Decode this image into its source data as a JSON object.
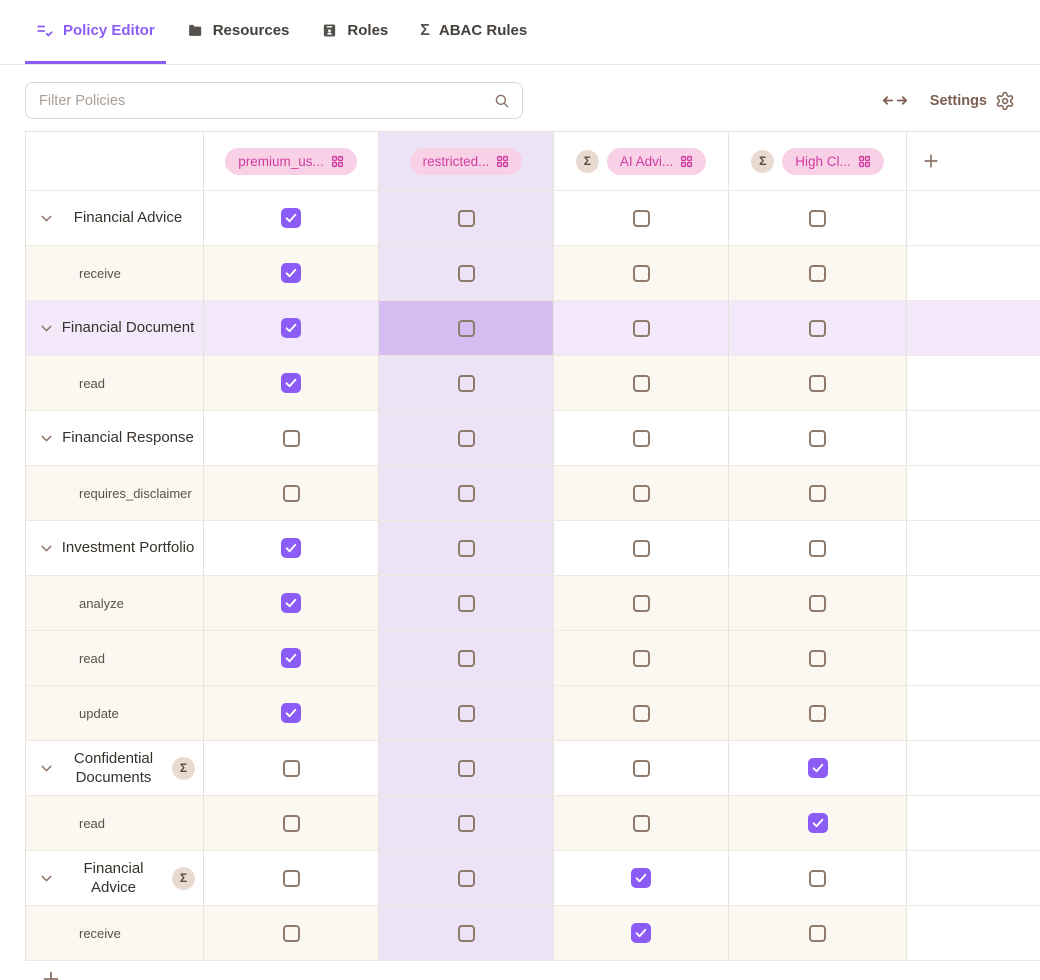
{
  "tabs": {
    "items": [
      {
        "label": "Policy Editor",
        "icon": "list-check-icon",
        "active": true
      },
      {
        "label": "Resources",
        "icon": "folder-icon",
        "active": false
      },
      {
        "label": "Roles",
        "icon": "id-badge-icon",
        "active": false
      },
      {
        "label": "ABAC Rules",
        "icon": "sigma-icon",
        "active": false
      }
    ]
  },
  "toolbar": {
    "filter_placeholder": "Filter Policies",
    "settings_label": "Settings"
  },
  "glyphs": {
    "sigma": "Σ"
  },
  "matrix": {
    "columns": [
      {
        "label": "premium_us...",
        "sigma": false,
        "selected": false
      },
      {
        "label": "restricted...",
        "sigma": false,
        "selected": true
      },
      {
        "label": "AI Advi...",
        "sigma": true,
        "selected": false
      },
      {
        "label": "High Cl...",
        "sigma": true,
        "selected": false
      }
    ],
    "rows": [
      {
        "type": "resource",
        "label": "Financial Advice",
        "sigma": false,
        "highlighted": false,
        "checks": [
          true,
          false,
          false,
          false
        ]
      },
      {
        "type": "action",
        "label": "receive",
        "sigma": false,
        "highlighted": false,
        "checks": [
          true,
          false,
          false,
          false
        ]
      },
      {
        "type": "resource",
        "label": "Financial Document",
        "sigma": false,
        "highlighted": true,
        "checks": [
          true,
          false,
          false,
          false
        ]
      },
      {
        "type": "action",
        "label": "read",
        "sigma": false,
        "highlighted": false,
        "checks": [
          true,
          false,
          false,
          false
        ]
      },
      {
        "type": "resource",
        "label": "Financial Response",
        "sigma": false,
        "highlighted": false,
        "checks": [
          false,
          false,
          false,
          false
        ]
      },
      {
        "type": "action",
        "label": "requires_disclaimer",
        "sigma": false,
        "highlighted": false,
        "checks": [
          false,
          false,
          false,
          false
        ]
      },
      {
        "type": "resource",
        "label": "Investment Portfolio",
        "sigma": false,
        "highlighted": false,
        "checks": [
          true,
          false,
          false,
          false
        ]
      },
      {
        "type": "action",
        "label": "analyze",
        "sigma": false,
        "highlighted": false,
        "checks": [
          true,
          false,
          false,
          false
        ]
      },
      {
        "type": "action",
        "label": "read",
        "sigma": false,
        "highlighted": false,
        "checks": [
          true,
          false,
          false,
          false
        ]
      },
      {
        "type": "action",
        "label": "update",
        "sigma": false,
        "highlighted": false,
        "checks": [
          true,
          false,
          false,
          false
        ]
      },
      {
        "type": "resource",
        "label": "Confidential Documents",
        "sigma": true,
        "highlighted": false,
        "checks": [
          false,
          false,
          false,
          true
        ]
      },
      {
        "type": "action",
        "label": "read",
        "sigma": false,
        "highlighted": false,
        "checks": [
          false,
          false,
          false,
          true
        ]
      },
      {
        "type": "resource",
        "label": "Financial Advice",
        "sigma": true,
        "highlighted": false,
        "checks": [
          false,
          false,
          true,
          false
        ]
      },
      {
        "type": "action",
        "label": "receive",
        "sigma": false,
        "highlighted": false,
        "checks": [
          false,
          false,
          true,
          false
        ]
      }
    ]
  },
  "colors": {
    "accent": "#8b5cf6",
    "tab_text": "#45403b",
    "pill_bg": "#f9d1e7",
    "pill_text": "#d03da0",
    "sigma_badge_bg": "#e9dad1",
    "sigma_badge_text": "#5c4a3e",
    "cream_row": "#fbf7f1",
    "column_tint": "#ece3f7",
    "row_tint": "#f3e9fb",
    "intersection_tint": "#d5bdf1",
    "checkbox_checked": "#8b5cf6",
    "checkbox_border": "#8f7b6c",
    "toolbar_brown": "#7d6052",
    "border": "#e8e2dd"
  }
}
